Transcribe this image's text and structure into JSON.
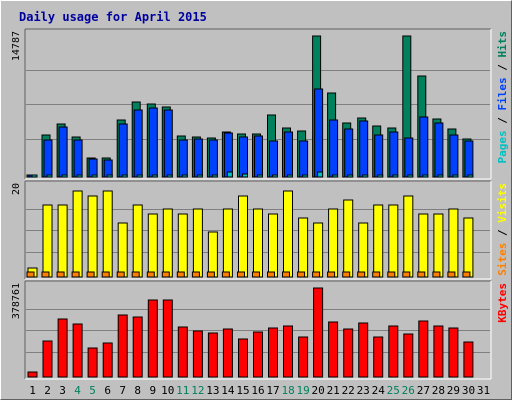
{
  "chart_data": {
    "type": "bar",
    "title": "Daily usage for April 2015",
    "categories": [
      "1",
      "2",
      "3",
      "4",
      "5",
      "6",
      "7",
      "8",
      "9",
      "10",
      "11",
      "12",
      "13",
      "14",
      "15",
      "16",
      "17",
      "18",
      "19",
      "20",
      "21",
      "22",
      "23",
      "24",
      "25",
      "26",
      "27",
      "28",
      "29",
      "30",
      "31"
    ],
    "weekend_days": [
      "4",
      "5",
      "11",
      "12",
      "18",
      "19",
      "25",
      "26"
    ],
    "panels": [
      {
        "id": "hits-files-pages",
        "ymax_label": "14787",
        "ymax": 14787,
        "legend": [
          {
            "text": "Pages",
            "color": "#00c0c0"
          },
          {
            "text": " / ",
            "color": "#000000"
          },
          {
            "text": "Files",
            "color": "#0040ff"
          },
          {
            "text": " / ",
            "color": "#000000"
          },
          {
            "text": "Hits",
            "color": "#00805c"
          }
        ],
        "series": [
          {
            "name": "Hits",
            "color": "#00805c",
            "values": [
              200,
              4400,
              5500,
              4200,
              2000,
              2000,
              5900,
              7800,
              7600,
              7300,
              4300,
              4200,
              4100,
              4700,
              4500,
              4500,
              6500,
              5100,
              4800,
              14700,
              8700,
              5600,
              6100,
              5300,
              5100,
              14700,
              10500,
              6000,
              5000,
              4000
            ]
          },
          {
            "name": "Files",
            "color": "#0040ff",
            "values": [
              200,
              3900,
              5200,
              3900,
              1900,
              1800,
              5500,
              7000,
              7200,
              7000,
              3900,
              4000,
              3900,
              4600,
              4200,
              4300,
              3700,
              4700,
              3700,
              9200,
              5900,
              5000,
              5800,
              4400,
              4700,
              4100,
              6300,
              5600,
              4400,
              3700
            ]
          },
          {
            "name": "Pages",
            "color": "#00c0c0",
            "values": [
              100,
              100,
              100,
              100,
              100,
              100,
              100,
              150,
              150,
              100,
              100,
              100,
              100,
              500,
              300,
              100,
              100,
              100,
              100,
              500,
              100,
              100,
              100,
              100,
              100,
              100,
              100,
              100,
              100,
              100
            ]
          }
        ]
      },
      {
        "id": "visits-sites",
        "ymax_label": "20",
        "ymax": 20,
        "legend": [
          {
            "text": "Sites",
            "color": "#ff8000"
          },
          {
            "text": " / ",
            "color": "#000000"
          },
          {
            "text": "Visits",
            "color": "#ffff00"
          }
        ],
        "series": [
          {
            "name": "Visits",
            "color": "#ffff00",
            "values": [
              2,
              16,
              16,
              19,
              18,
              19,
              12,
              16,
              14,
              15,
              14,
              15,
              10,
              15,
              18,
              15,
              14,
              19,
              13,
              12,
              15,
              17,
              12,
              16,
              16,
              18,
              14,
              14,
              15,
              13
            ]
          },
          {
            "name": "Sites",
            "color": "#ff8000",
            "values": [
              1,
              1,
              1,
              1,
              1,
              1,
              1,
              1,
              1,
              1,
              1,
              1,
              1,
              1,
              1,
              1,
              1,
              1,
              1,
              1,
              1,
              1,
              1,
              1,
              1,
              1,
              1,
              1,
              1,
              1
            ]
          }
        ]
      },
      {
        "id": "kbytes",
        "ymax_label": "378761",
        "ymax": 378761,
        "legend": [
          {
            "text": "KBytes",
            "color": "#ff0000"
          }
        ],
        "series": [
          {
            "name": "KBytes",
            "color": "#ff0000",
            "values": [
              20000,
              150000,
              245000,
              222000,
              123000,
              142000,
              260000,
              252000,
              322000,
              326000,
              210000,
              194000,
              186000,
              203000,
              160000,
              191000,
              206000,
              213000,
              170000,
              375000,
              232000,
              202000,
              228000,
              170000,
              214000,
              182000,
              234000,
              215000,
              208000,
              147000
            ]
          }
        ]
      }
    ]
  }
}
